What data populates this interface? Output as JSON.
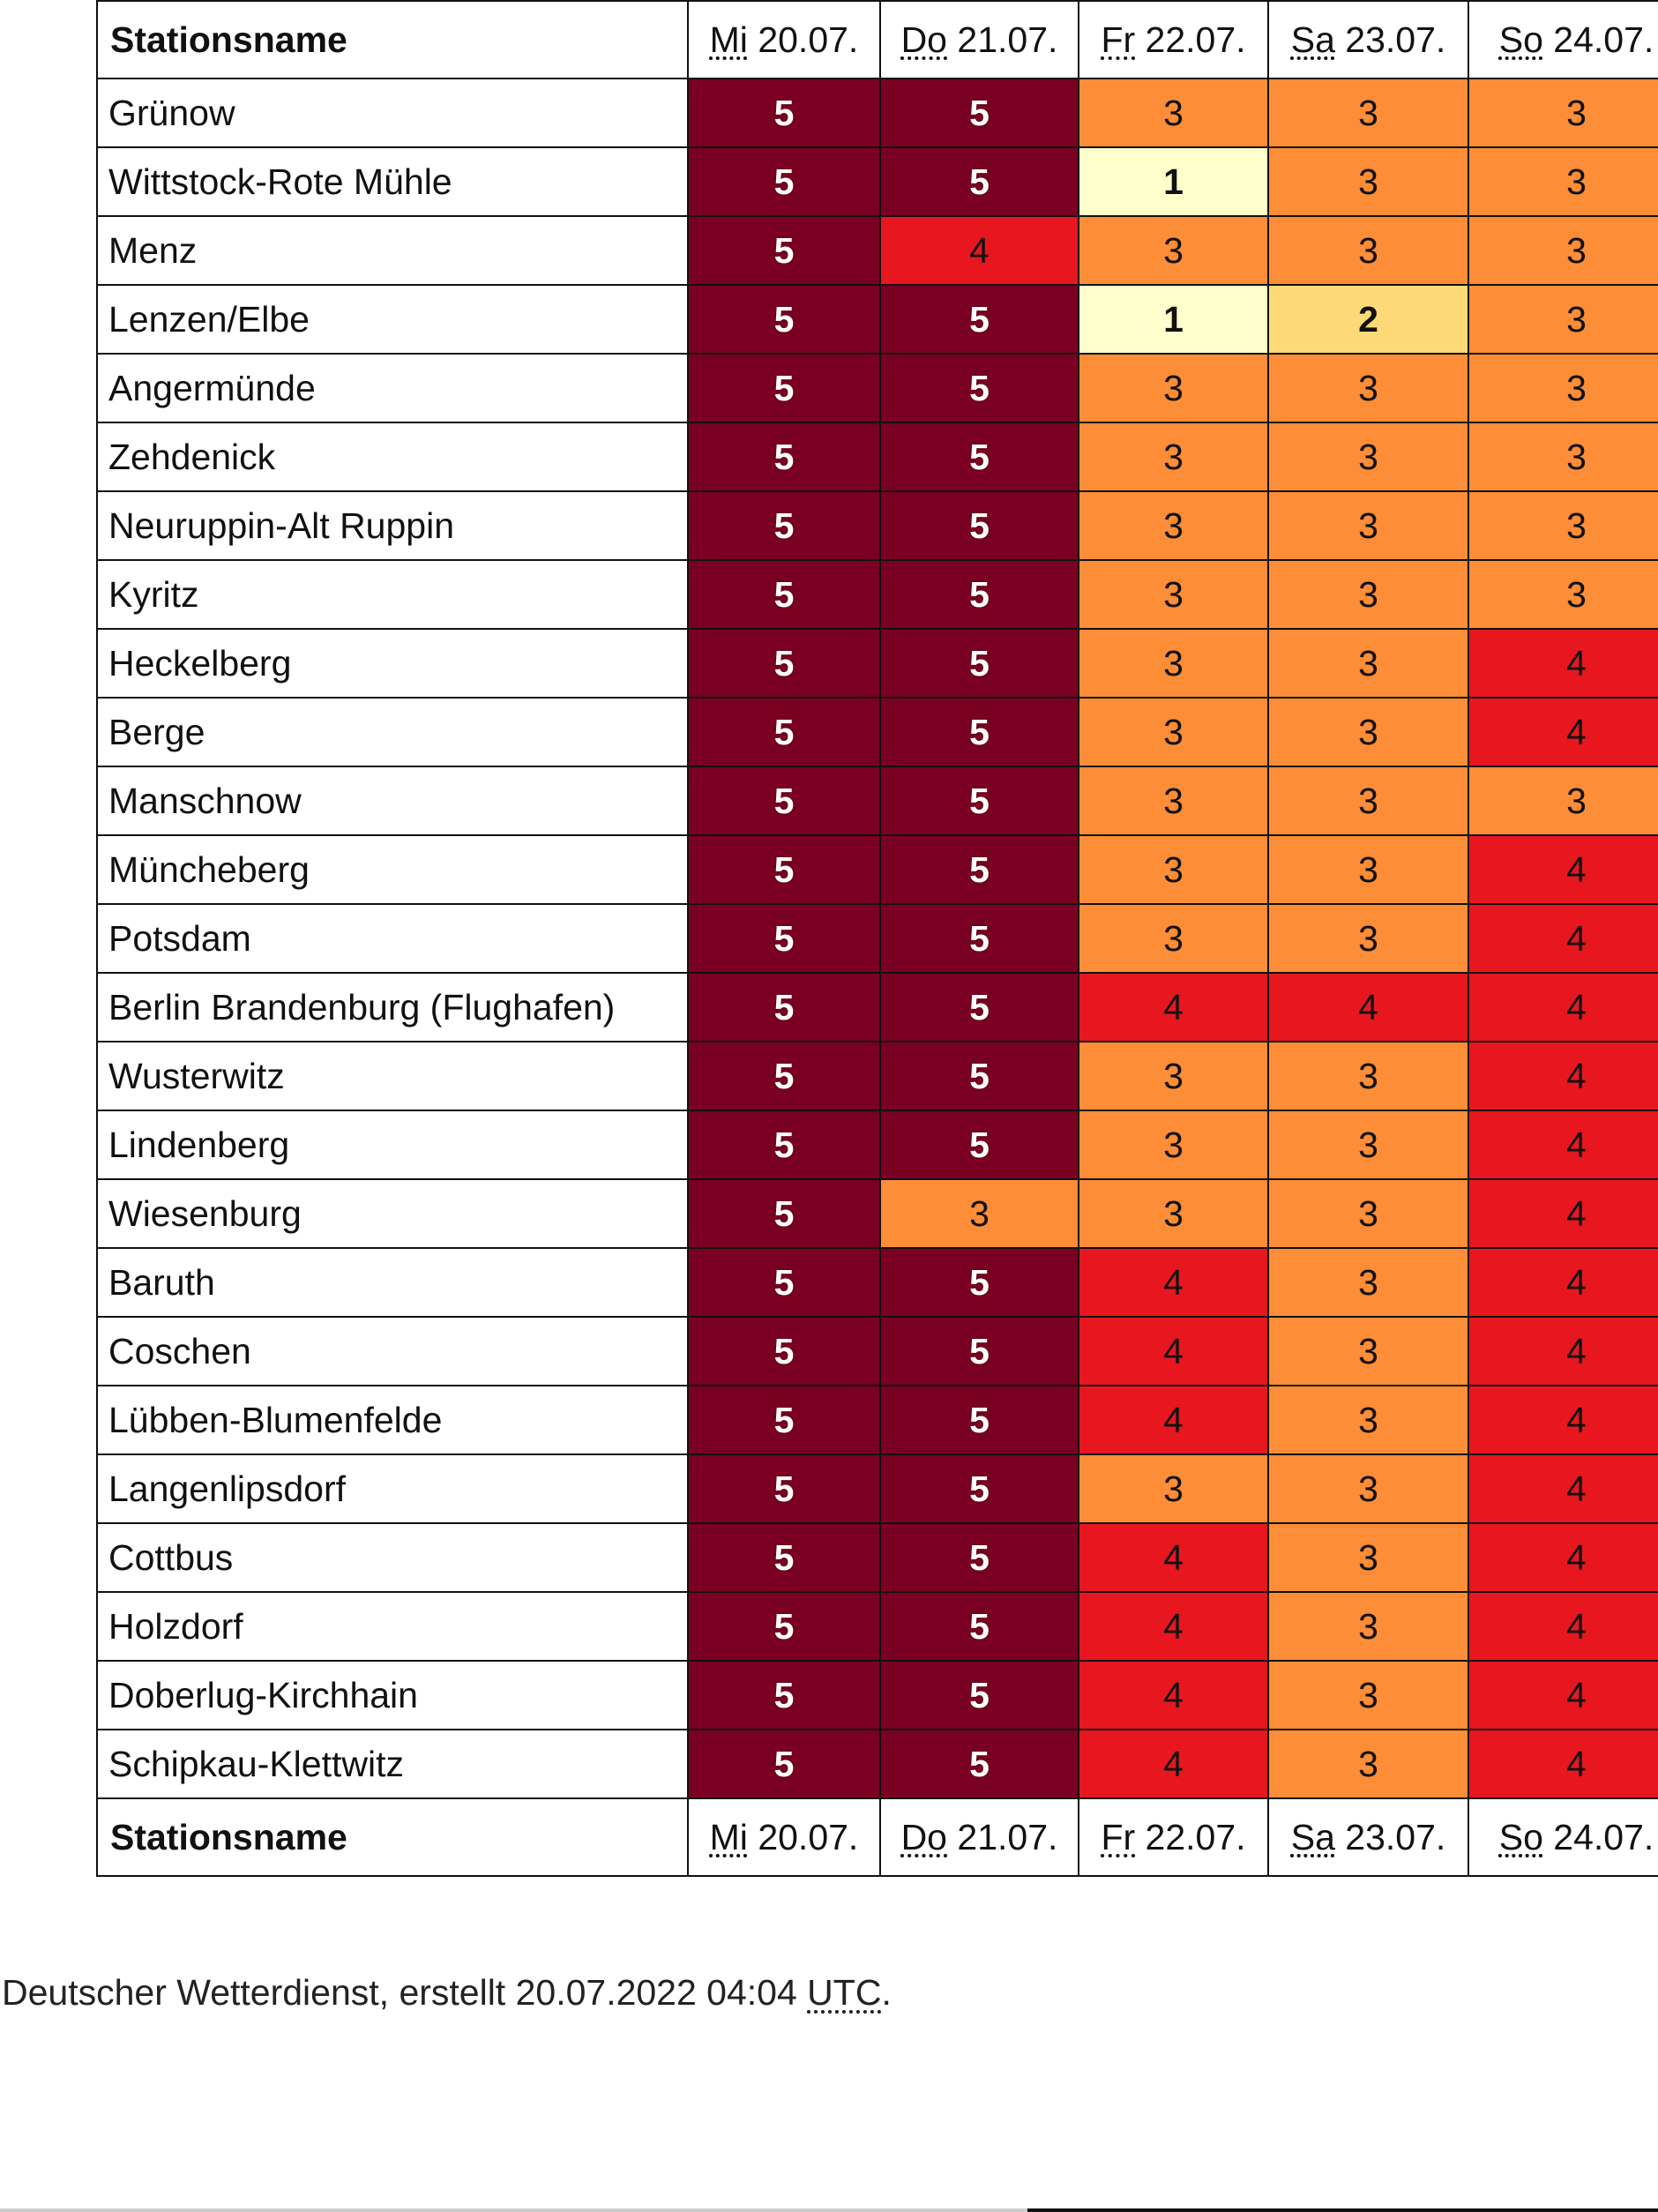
{
  "table": {
    "name_header": "Stationsname",
    "days": [
      {
        "abbr": "Mi",
        "date": "20.07."
      },
      {
        "abbr": "Do",
        "date": "21.07."
      },
      {
        "abbr": "Fr",
        "date": "22.07."
      },
      {
        "abbr": "Sa",
        "date": "23.07."
      },
      {
        "abbr": "So",
        "date": "24.07."
      }
    ],
    "rows": [
      {
        "station": "Grünow",
        "values": [
          5,
          5,
          3,
          3,
          3
        ]
      },
      {
        "station": "Wittstock-Rote Mühle",
        "values": [
          5,
          5,
          1,
          3,
          3
        ]
      },
      {
        "station": "Menz",
        "values": [
          5,
          4,
          3,
          3,
          3
        ]
      },
      {
        "station": "Lenzen/Elbe",
        "values": [
          5,
          5,
          1,
          2,
          3
        ]
      },
      {
        "station": "Angermünde",
        "values": [
          5,
          5,
          3,
          3,
          3
        ]
      },
      {
        "station": "Zehdenick",
        "values": [
          5,
          5,
          3,
          3,
          3
        ]
      },
      {
        "station": "Neuruppin-Alt Ruppin",
        "values": [
          5,
          5,
          3,
          3,
          3
        ]
      },
      {
        "station": "Kyritz",
        "values": [
          5,
          5,
          3,
          3,
          3
        ]
      },
      {
        "station": "Heckelberg",
        "values": [
          5,
          5,
          3,
          3,
          4
        ]
      },
      {
        "station": "Berge",
        "values": [
          5,
          5,
          3,
          3,
          4
        ]
      },
      {
        "station": "Manschnow",
        "values": [
          5,
          5,
          3,
          3,
          3
        ]
      },
      {
        "station": "Müncheberg",
        "values": [
          5,
          5,
          3,
          3,
          4
        ]
      },
      {
        "station": "Potsdam",
        "values": [
          5,
          5,
          3,
          3,
          4
        ]
      },
      {
        "station": "Berlin Brandenburg (Flughafen)",
        "values": [
          5,
          5,
          4,
          4,
          4
        ]
      },
      {
        "station": "Wusterwitz",
        "values": [
          5,
          5,
          3,
          3,
          4
        ]
      },
      {
        "station": "Lindenberg",
        "values": [
          5,
          5,
          3,
          3,
          4
        ]
      },
      {
        "station": "Wiesenburg",
        "values": [
          5,
          3,
          3,
          3,
          4
        ]
      },
      {
        "station": "Baruth",
        "values": [
          5,
          5,
          4,
          3,
          4
        ]
      },
      {
        "station": "Coschen",
        "values": [
          5,
          5,
          4,
          3,
          4
        ]
      },
      {
        "station": "Lübben-Blumenfelde",
        "values": [
          5,
          5,
          4,
          3,
          4
        ]
      },
      {
        "station": "Langenlipsdorf",
        "values": [
          5,
          5,
          3,
          3,
          4
        ]
      },
      {
        "station": "Cottbus",
        "values": [
          5,
          5,
          4,
          3,
          4
        ]
      },
      {
        "station": "Holzdorf",
        "values": [
          5,
          5,
          4,
          3,
          4
        ]
      },
      {
        "station": "Doberlug-Kirchhain",
        "values": [
          5,
          5,
          4,
          3,
          4
        ]
      },
      {
        "station": "Schipkau-Klettwitz",
        "values": [
          5,
          5,
          4,
          3,
          4
        ]
      }
    ]
  },
  "level_colors": {
    "1": "#ffffcc",
    "2": "#fed977",
    "3": "#fd8d36",
    "4": "#e8171f",
    "5": "#7a0022"
  },
  "footer": {
    "text": "Deutscher Wetterdienst, erstellt 20.07.2022 04:04 ",
    "utc": "UTC",
    "end": "."
  }
}
